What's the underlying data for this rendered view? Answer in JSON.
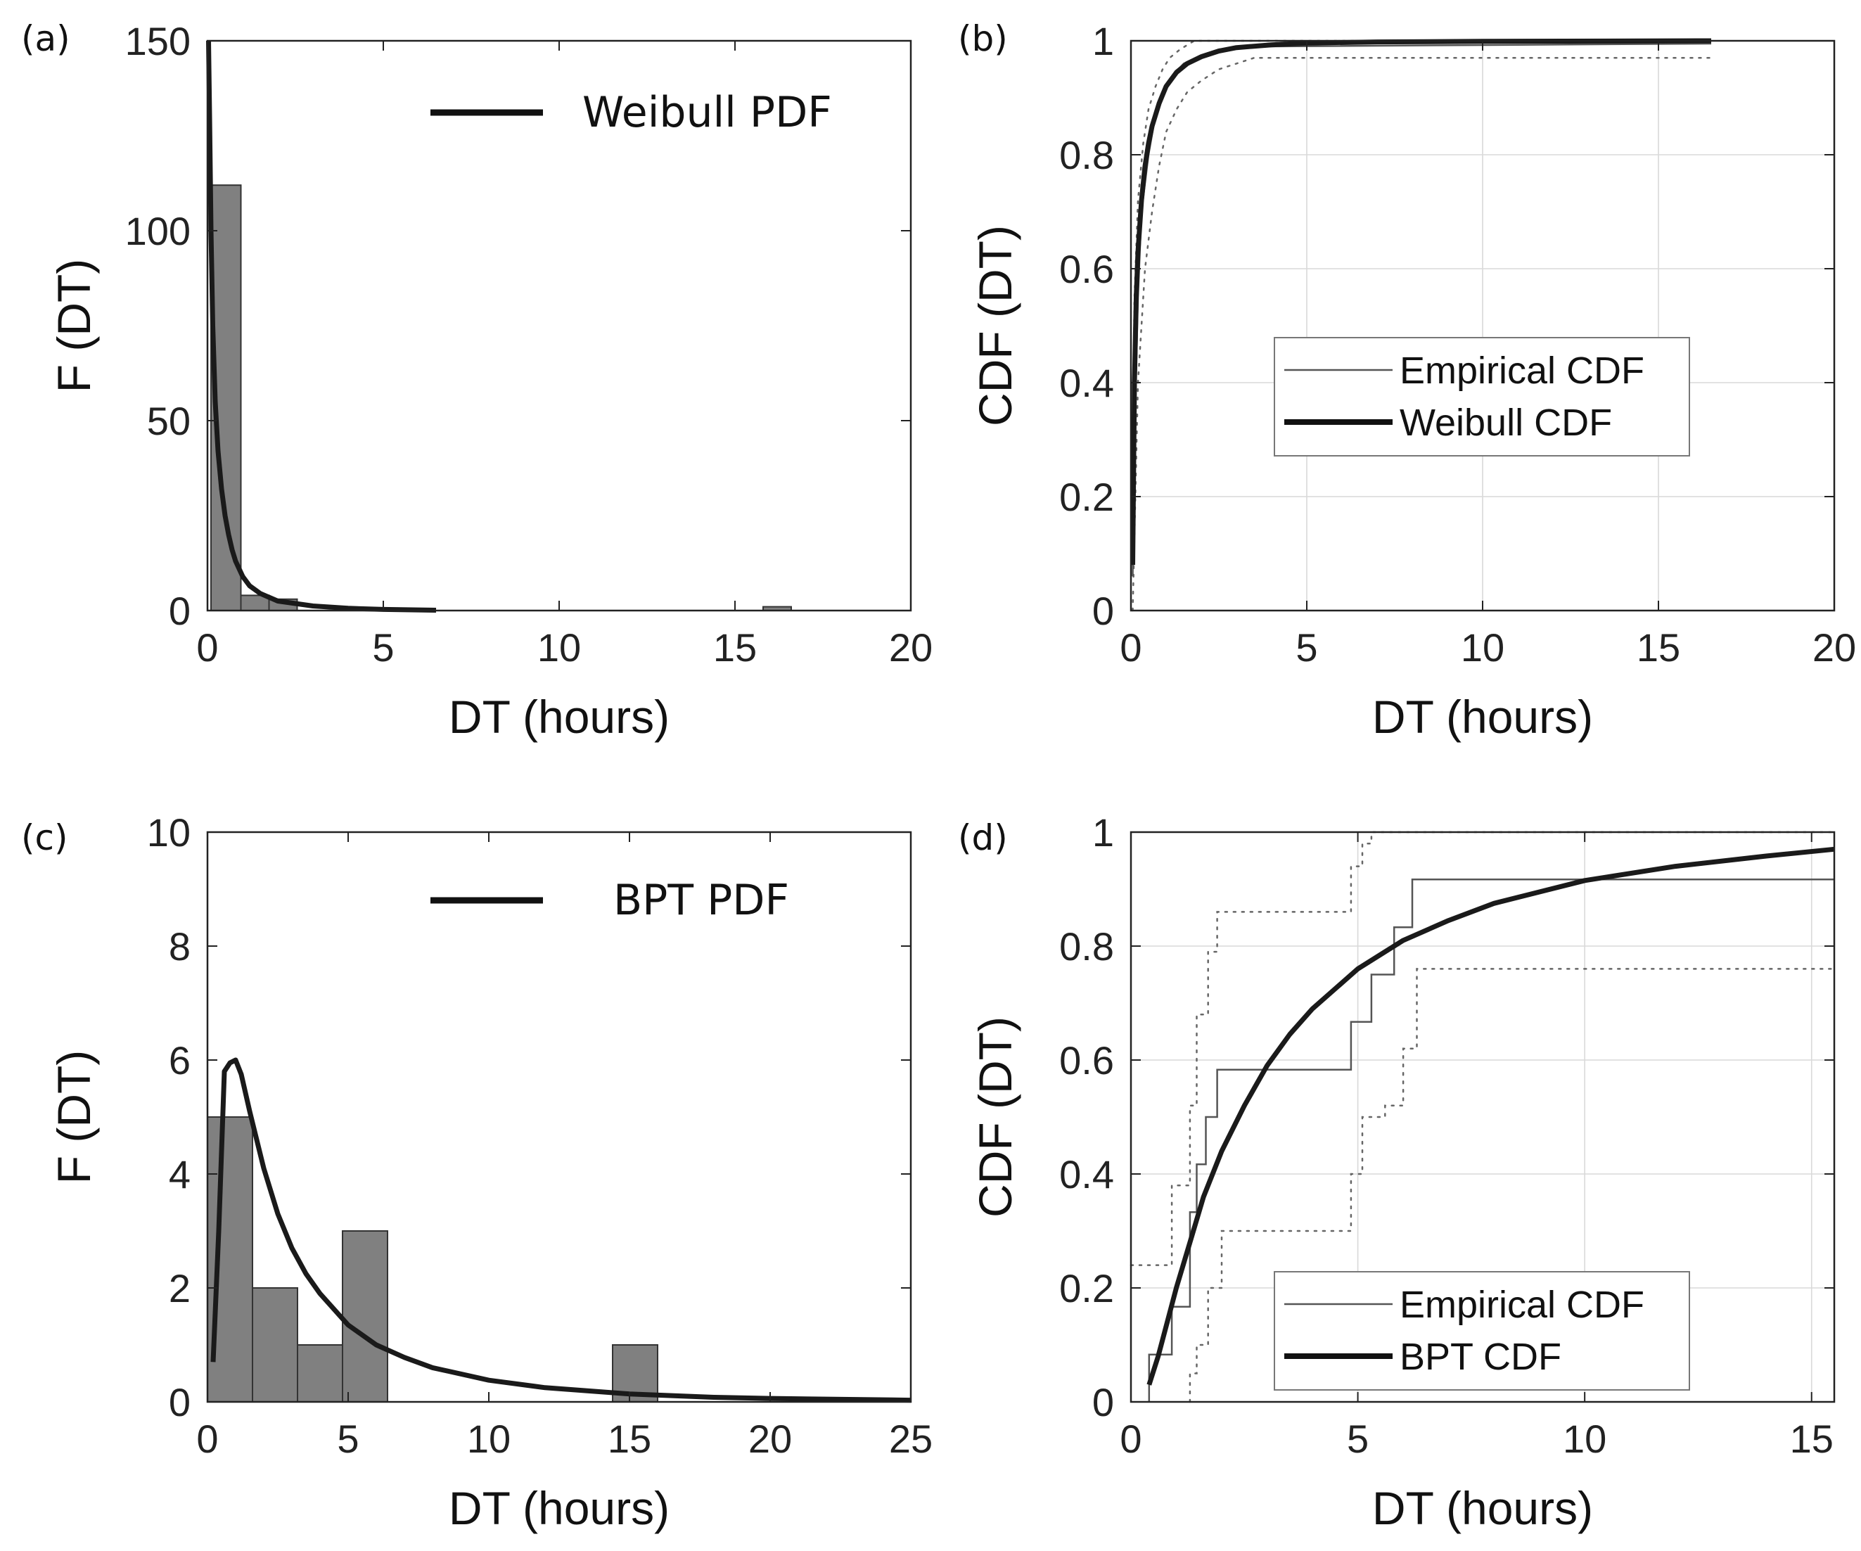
{
  "chart_data": [
    {
      "id": "a",
      "panel_label": "(a)",
      "type": "bar",
      "title": "",
      "xlabel": "DT (hours)",
      "ylabel": "F (DT)",
      "xlim": [
        0,
        20
      ],
      "ylim": [
        0,
        150
      ],
      "xticks": [
        "0",
        "5",
        "10",
        "15",
        "20"
      ],
      "yticks": [
        "0",
        "50",
        "100",
        "150"
      ],
      "grid": false,
      "bar_color": "#808080",
      "bins": [
        {
          "x0": 0.1,
          "x1": 0.95,
          "value": 112
        },
        {
          "x0": 0.95,
          "x1": 1.75,
          "value": 4
        },
        {
          "x0": 1.75,
          "x1": 2.55,
          "value": 3
        },
        {
          "x0": 15.8,
          "x1": 16.6,
          "value": 1
        }
      ],
      "fit": {
        "name": "Weibull PDF",
        "x": [
          0.03,
          0.06,
          0.1,
          0.15,
          0.22,
          0.3,
          0.4,
          0.5,
          0.6,
          0.7,
          0.8,
          1.0,
          1.2,
          1.5,
          2.0,
          3.0,
          4.0,
          5.0,
          6.5
        ],
        "y": [
          150,
          130,
          100,
          75,
          55,
          42,
          32,
          25,
          20,
          16,
          13,
          9,
          6.5,
          4.5,
          2.5,
          1.2,
          0.6,
          0.3,
          0.1
        ]
      },
      "legend": {
        "position": "top-right",
        "entries": [
          "Weibull PDF"
        ]
      }
    },
    {
      "id": "b",
      "panel_label": "(b)",
      "type": "line",
      "title": "",
      "xlabel": "DT (hours)",
      "ylabel": "CDF (DT)",
      "xlim": [
        0,
        20
      ],
      "ylim": [
        0,
        1
      ],
      "xticks": [
        "0",
        "5",
        "10",
        "15",
        "20"
      ],
      "yticks": [
        "0",
        "0.2",
        "0.4",
        "0.6",
        "0.8",
        "1"
      ],
      "grid": true,
      "series": [
        {
          "name": "Empirical CDF",
          "style": "thin",
          "x": [
            0.05,
            0.1,
            0.2,
            0.3,
            0.5,
            0.7,
            0.9,
            1.2,
            1.5,
            2.0,
            2.5,
            3.5,
            16.5
          ],
          "y": [
            0.06,
            0.3,
            0.55,
            0.7,
            0.8,
            0.87,
            0.91,
            0.94,
            0.96,
            0.975,
            0.985,
            0.99,
            0.995
          ]
        },
        {
          "name": "Weibull CDF",
          "style": "thick",
          "x": [
            0.05,
            0.1,
            0.15,
            0.2,
            0.3,
            0.4,
            0.5,
            0.6,
            0.8,
            1.0,
            1.3,
            1.6,
            2.0,
            2.5,
            3.0,
            4.0,
            5.0,
            7.0,
            10.0,
            16.5
          ],
          "y": [
            0.08,
            0.4,
            0.55,
            0.63,
            0.72,
            0.78,
            0.82,
            0.85,
            0.89,
            0.92,
            0.945,
            0.96,
            0.972,
            0.982,
            0.988,
            0.993,
            0.996,
            0.998,
            0.999,
            1.0
          ]
        },
        {
          "name": "upper bound",
          "style": "dotted",
          "x": [
            0.05,
            0.1,
            0.2,
            0.35,
            0.5,
            0.7,
            0.9,
            1.1,
            1.4,
            1.8,
            16.5
          ],
          "y": [
            0.3,
            0.55,
            0.72,
            0.82,
            0.88,
            0.92,
            0.95,
            0.97,
            0.985,
            1.0,
            1.0
          ]
        },
        {
          "name": "lower bound",
          "style": "dotted",
          "x": [
            0.05,
            0.2,
            0.4,
            0.6,
            0.8,
            1.0,
            1.3,
            1.6,
            2.0,
            2.5,
            3.0,
            3.5,
            16.5
          ],
          "y": [
            0.0,
            0.4,
            0.6,
            0.7,
            0.78,
            0.84,
            0.88,
            0.91,
            0.93,
            0.95,
            0.96,
            0.97,
            0.97
          ]
        }
      ],
      "legend": {
        "position": "center-right",
        "entries": [
          "Empirical CDF",
          "Weibull CDF"
        ]
      }
    },
    {
      "id": "c",
      "panel_label": "(c)",
      "type": "bar",
      "title": "",
      "xlabel": "DT (hours)",
      "ylabel": "F (DT)",
      "xlim": [
        0,
        25
      ],
      "ylim": [
        0,
        10
      ],
      "xticks": [
        "0",
        "5",
        "10",
        "15",
        "20",
        "25"
      ],
      "yticks": [
        "0",
        "2",
        "4",
        "6",
        "8",
        "10"
      ],
      "grid": false,
      "bar_color": "#808080",
      "bins": [
        {
          "x0": 0.0,
          "x1": 1.6,
          "value": 5
        },
        {
          "x0": 1.6,
          "x1": 3.2,
          "value": 2
        },
        {
          "x0": 3.2,
          "x1": 4.8,
          "value": 1
        },
        {
          "x0": 4.8,
          "x1": 6.4,
          "value": 3
        },
        {
          "x0": 14.4,
          "x1": 16.0,
          "value": 1
        }
      ],
      "fit": {
        "name": "BPT PDF",
        "x": [
          0.2,
          0.4,
          0.6,
          0.8,
          1.0,
          1.2,
          1.5,
          2.0,
          2.5,
          3.0,
          3.5,
          4.0,
          5.0,
          6.0,
          7.0,
          8.0,
          10.0,
          12.0,
          15.0,
          18.0,
          20.0,
          25.0
        ],
        "y": [
          0.7,
          3.0,
          5.8,
          5.95,
          6.0,
          5.75,
          5.1,
          4.1,
          3.3,
          2.7,
          2.25,
          1.9,
          1.35,
          1.0,
          0.78,
          0.6,
          0.38,
          0.25,
          0.14,
          0.08,
          0.06,
          0.03
        ]
      },
      "legend": {
        "position": "top-right",
        "entries": [
          "BPT PDF"
        ]
      }
    },
    {
      "id": "d",
      "panel_label": "(d)",
      "type": "line",
      "title": "",
      "xlabel": "DT (hours)",
      "ylabel": "CDF (DT)",
      "xlim": [
        0,
        15.5
      ],
      "ylim": [
        0,
        1
      ],
      "xticks": [
        "0",
        "5",
        "10",
        "15"
      ],
      "yticks": [
        "0",
        "0.2",
        "0.4",
        "0.6",
        "0.8",
        "1"
      ],
      "grid": true,
      "series": [
        {
          "name": "Empirical CDF",
          "style": "step-thin",
          "x": [
            0.4,
            0.4,
            0.9,
            0.9,
            1.3,
            1.3,
            1.45,
            1.45,
            1.65,
            1.65,
            1.9,
            1.9,
            4.85,
            4.85,
            5.3,
            5.3,
            5.8,
            5.8,
            6.2,
            6.2,
            15.5
          ],
          "y": [
            0.0,
            0.083,
            0.083,
            0.167,
            0.167,
            0.333,
            0.333,
            0.417,
            0.417,
            0.5,
            0.5,
            0.583,
            0.583,
            0.667,
            0.667,
            0.75,
            0.75,
            0.833,
            0.833,
            0.917,
            0.917
          ]
        },
        {
          "name": "BPT CDF",
          "style": "thick",
          "x": [
            0.4,
            0.6,
            0.8,
            1.0,
            1.3,
            1.6,
            2.0,
            2.5,
            3.0,
            3.5,
            4.0,
            5.0,
            6.0,
            7.0,
            8.0,
            10.0,
            12.0,
            14.0,
            15.5
          ],
          "y": [
            0.03,
            0.08,
            0.14,
            0.2,
            0.28,
            0.36,
            0.44,
            0.52,
            0.59,
            0.645,
            0.69,
            0.76,
            0.81,
            0.845,
            0.875,
            0.915,
            0.94,
            0.958,
            0.97
          ]
        },
        {
          "name": "upper bound",
          "style": "dotted-step",
          "x": [
            0.0,
            0.9,
            0.9,
            1.3,
            1.3,
            1.45,
            1.45,
            1.7,
            1.7,
            1.9,
            1.9,
            4.85,
            4.85,
            5.1,
            5.1,
            5.3,
            5.3,
            15.5
          ],
          "y": [
            0.24,
            0.24,
            0.38,
            0.38,
            0.52,
            0.52,
            0.68,
            0.68,
            0.79,
            0.79,
            0.86,
            0.86,
            0.94,
            0.94,
            0.98,
            0.98,
            1.0,
            1.0
          ]
        },
        {
          "name": "lower bound",
          "style": "dotted-step",
          "x": [
            1.3,
            1.3,
            1.45,
            1.45,
            1.7,
            1.7,
            2.0,
            2.0,
            4.85,
            4.85,
            5.1,
            5.1,
            5.6,
            5.6,
            6.0,
            6.0,
            6.3,
            6.3,
            15.5
          ],
          "y": [
            0.0,
            0.05,
            0.05,
            0.1,
            0.1,
            0.2,
            0.2,
            0.3,
            0.3,
            0.4,
            0.4,
            0.5,
            0.5,
            0.52,
            0.52,
            0.62,
            0.62,
            0.76,
            0.76
          ]
        }
      ],
      "legend": {
        "position": "bottom-right",
        "entries": [
          "Empirical CDF",
          "BPT CDF"
        ]
      }
    }
  ]
}
